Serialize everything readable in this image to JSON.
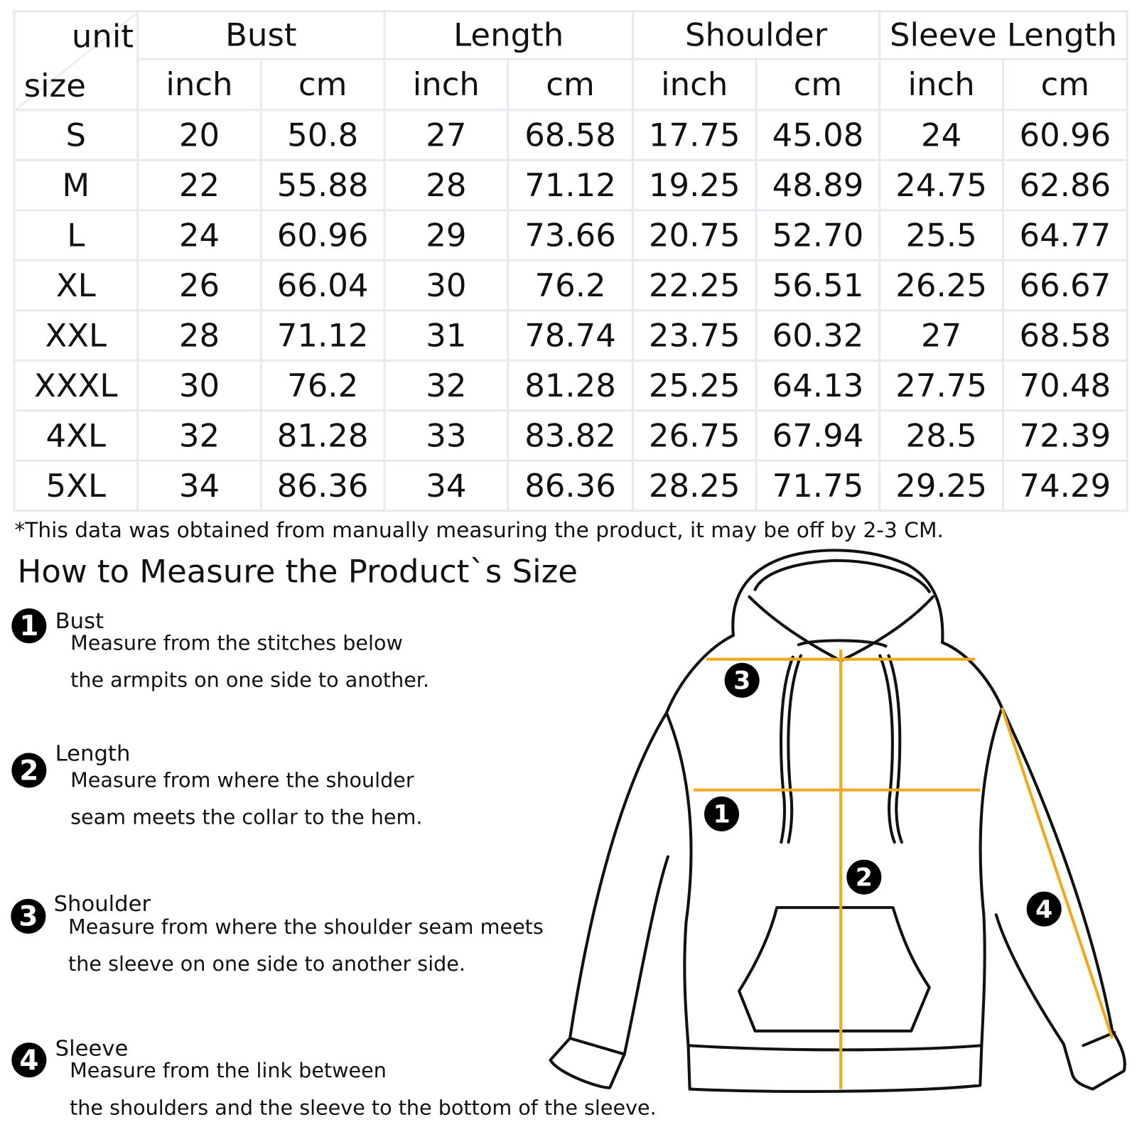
{
  "table": {
    "corner_unit": "unit",
    "corner_size": "size",
    "groups": [
      "Bust",
      "Length",
      "Shoulder",
      "Sleeve Length"
    ],
    "units": [
      "inch",
      "cm",
      "inch",
      "cm",
      "inch",
      "cm",
      "inch",
      "cm"
    ],
    "rows": [
      {
        "size": "S",
        "values": [
          "20",
          "50.8",
          "27",
          "68.58",
          "17.75",
          "45.08",
          "24",
          "60.96"
        ]
      },
      {
        "size": "M",
        "values": [
          "22",
          "55.88",
          "28",
          "71.12",
          "19.25",
          "48.89",
          "24.75",
          "62.86"
        ]
      },
      {
        "size": "L",
        "values": [
          "24",
          "60.96",
          "29",
          "73.66",
          "20.75",
          "52.70",
          "25.5",
          "64.77"
        ]
      },
      {
        "size": "XL",
        "values": [
          "26",
          "66.04",
          "30",
          "76.2",
          "22.25",
          "56.51",
          "26.25",
          "66.67"
        ]
      },
      {
        "size": "XXL",
        "values": [
          "28",
          "71.12",
          "31",
          "78.74",
          "23.75",
          "60.32",
          "27",
          "68.58"
        ]
      },
      {
        "size": "XXXL",
        "values": [
          "30",
          "76.2",
          "32",
          "81.28",
          "25.25",
          "64.13",
          "27.75",
          "70.48"
        ]
      },
      {
        "size": "4XL",
        "values": [
          "32",
          "81.28",
          "33",
          "83.82",
          "26.75",
          "67.94",
          "28.5",
          "72.39"
        ]
      },
      {
        "size": "5XL",
        "values": [
          "34",
          "86.36",
          "34",
          "86.36",
          "28.25",
          "71.75",
          "29.25",
          "74.29"
        ]
      }
    ]
  },
  "note": "*This data was obtained from manually measuring the product, it may be off by 2-3 CM.",
  "guide": {
    "title": "How to Measure the Product`s Size",
    "items": [
      {
        "num": "1",
        "label": "Bust",
        "line1": "Measure from the stitches below",
        "line2": "the armpits on one side to another."
      },
      {
        "num": "2",
        "label": "Length",
        "line1": "Measure from where the shoulder",
        "line2": "seam meets the collar to the hem."
      },
      {
        "num": "3",
        "label": "Shoulder",
        "line1": "Measure from where the shoulder seam meets",
        "line2": "the sleeve on one side to another side."
      },
      {
        "num": "4",
        "label": "Sleeve",
        "line1": "Measure from the link between",
        "line2": "the shoulders and the sleeve to the bottom of the sleeve."
      }
    ]
  },
  "colors": {
    "measure_line": "#f0a81c",
    "border": "#e6eaee"
  }
}
